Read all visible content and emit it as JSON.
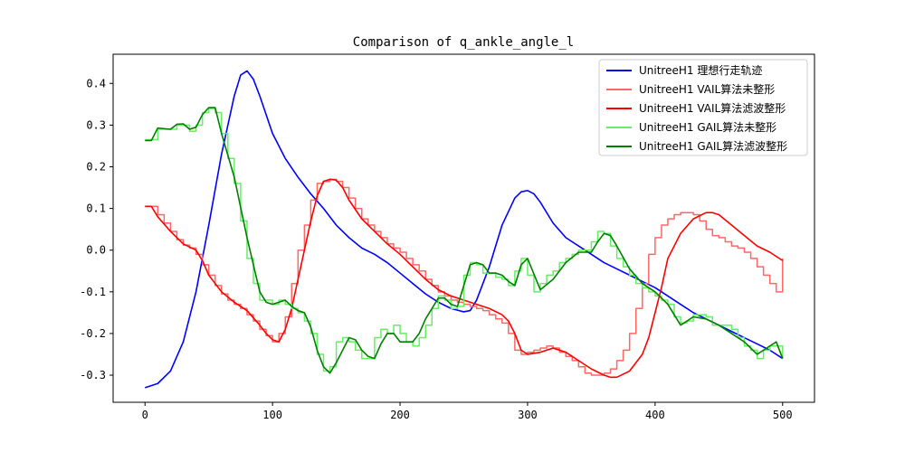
{
  "chart_data": {
    "type": "line",
    "title": "Comparison of q_ankle_angle_l",
    "xlabel": "",
    "ylabel": "",
    "xlim": [
      -25,
      525
    ],
    "ylim": [
      -0.365,
      0.47
    ],
    "xticks": [
      0,
      100,
      200,
      300,
      400,
      500
    ],
    "yticks": [
      -0.3,
      -0.2,
      -0.1,
      0.0,
      0.1,
      0.2,
      0.3,
      0.4
    ],
    "grid": false,
    "legend_position": "upper right",
    "series": [
      {
        "name": "UnitreeH1 理想行走轨迹",
        "color": "#0000ff",
        "style": "solid",
        "x": [
          0,
          10,
          20,
          30,
          40,
          50,
          60,
          70,
          75,
          80,
          85,
          90,
          100,
          110,
          120,
          130,
          140,
          150,
          160,
          170,
          180,
          190,
          200,
          210,
          220,
          230,
          240,
          250,
          255,
          260,
          270,
          280,
          290,
          295,
          300,
          305,
          310,
          320,
          330,
          340,
          350,
          360,
          370,
          380,
          390,
          400,
          410,
          420,
          430,
          440,
          450,
          460,
          470,
          480,
          490,
          500
        ],
        "y": [
          -0.33,
          -0.32,
          -0.29,
          -0.22,
          -0.1,
          0.06,
          0.23,
          0.37,
          0.42,
          0.43,
          0.41,
          0.37,
          0.28,
          0.22,
          0.175,
          0.135,
          0.1,
          0.06,
          0.03,
          0.005,
          -0.01,
          -0.03,
          -0.055,
          -0.08,
          -0.105,
          -0.125,
          -0.14,
          -0.148,
          -0.145,
          -0.12,
          -0.04,
          0.06,
          0.125,
          0.14,
          0.143,
          0.135,
          0.115,
          0.065,
          0.03,
          0.01,
          -0.01,
          -0.03,
          -0.045,
          -0.06,
          -0.075,
          -0.09,
          -0.11,
          -0.13,
          -0.15,
          -0.165,
          -0.18,
          -0.195,
          -0.21,
          -0.225,
          -0.24,
          -0.26
        ]
      },
      {
        "name": "UnitreeH1 VAIL算法未整形",
        "color": "#ff6666",
        "style": "step",
        "x": [
          0,
          5,
          10,
          15,
          20,
          25,
          30,
          35,
          40,
          45,
          50,
          55,
          60,
          65,
          70,
          75,
          80,
          85,
          90,
          95,
          100,
          105,
          110,
          115,
          120,
          125,
          130,
          135,
          140,
          145,
          150,
          155,
          160,
          165,
          170,
          175,
          180,
          185,
          190,
          195,
          200,
          205,
          210,
          215,
          220,
          225,
          230,
          235,
          240,
          245,
          250,
          255,
          260,
          265,
          270,
          275,
          280,
          285,
          290,
          295,
          300,
          305,
          310,
          315,
          320,
          325,
          330,
          335,
          340,
          345,
          350,
          355,
          360,
          365,
          370,
          375,
          380,
          385,
          390,
          395,
          400,
          405,
          410,
          415,
          420,
          425,
          430,
          435,
          440,
          445,
          450,
          455,
          460,
          465,
          470,
          475,
          480,
          485,
          490,
          495,
          500
        ],
        "y": [
          0.105,
          0.105,
          0.085,
          0.065,
          0.045,
          0.025,
          0.012,
          0.005,
          -0.01,
          -0.035,
          -0.06,
          -0.085,
          -0.105,
          -0.12,
          -0.13,
          -0.14,
          -0.155,
          -0.17,
          -0.19,
          -0.205,
          -0.22,
          -0.2,
          -0.16,
          -0.08,
          0.0,
          0.06,
          0.12,
          0.16,
          0.165,
          0.17,
          0.165,
          0.15,
          0.125,
          0.1,
          0.075,
          0.06,
          0.045,
          0.03,
          0.015,
          0.005,
          -0.005,
          -0.02,
          -0.035,
          -0.05,
          -0.07,
          -0.085,
          -0.1,
          -0.11,
          -0.12,
          -0.125,
          -0.13,
          -0.135,
          -0.14,
          -0.145,
          -0.155,
          -0.165,
          -0.175,
          -0.2,
          -0.24,
          -0.25,
          -0.245,
          -0.24,
          -0.235,
          -0.23,
          -0.235,
          -0.245,
          -0.255,
          -0.265,
          -0.28,
          -0.295,
          -0.3,
          -0.3,
          -0.295,
          -0.285,
          -0.265,
          -0.24,
          -0.2,
          -0.14,
          -0.08,
          -0.01,
          0.03,
          0.06,
          0.075,
          0.085,
          0.09,
          0.09,
          0.085,
          0.07,
          0.05,
          0.035,
          0.03,
          0.02,
          0.01,
          0.005,
          -0.005,
          -0.02,
          -0.04,
          -0.06,
          -0.08,
          -0.1,
          -0.02
        ]
      },
      {
        "name": "UnitreeH1 VAIL算法滤波整形",
        "color": "#ff0000",
        "style": "solid",
        "x": [
          0,
          5,
          10,
          20,
          30,
          40,
          45,
          50,
          60,
          70,
          80,
          90,
          95,
          100,
          105,
          110,
          115,
          120,
          125,
          130,
          135,
          140,
          145,
          150,
          155,
          160,
          170,
          180,
          190,
          200,
          210,
          220,
          230,
          240,
          250,
          260,
          270,
          280,
          285,
          290,
          295,
          300,
          310,
          320,
          330,
          340,
          350,
          360,
          365,
          370,
          380,
          390,
          395,
          400,
          405,
          410,
          420,
          430,
          440,
          445,
          450,
          460,
          470,
          480,
          490,
          500
        ],
        "y": [
          0.105,
          0.105,
          0.08,
          0.045,
          0.015,
          0.0,
          -0.025,
          -0.06,
          -0.1,
          -0.125,
          -0.145,
          -0.18,
          -0.2,
          -0.215,
          -0.22,
          -0.19,
          -0.14,
          -0.07,
          0.0,
          0.07,
          0.13,
          0.165,
          0.17,
          0.168,
          0.15,
          0.12,
          0.075,
          0.045,
          0.015,
          -0.01,
          -0.04,
          -0.07,
          -0.095,
          -0.11,
          -0.12,
          -0.13,
          -0.14,
          -0.155,
          -0.17,
          -0.2,
          -0.24,
          -0.25,
          -0.245,
          -0.235,
          -0.245,
          -0.265,
          -0.285,
          -0.3,
          -0.305,
          -0.305,
          -0.29,
          -0.25,
          -0.21,
          -0.15,
          -0.09,
          -0.02,
          0.04,
          0.075,
          0.09,
          0.09,
          0.085,
          0.06,
          0.035,
          0.01,
          -0.005,
          -0.025
        ]
      },
      {
        "name": "UnitreeH1 GAIL算法未整形",
        "color": "#66ee66",
        "style": "step",
        "x": [
          0,
          5,
          10,
          15,
          20,
          25,
          30,
          35,
          40,
          45,
          50,
          55,
          60,
          65,
          70,
          75,
          80,
          85,
          90,
          95,
          100,
          105,
          110,
          115,
          120,
          125,
          130,
          135,
          140,
          145,
          150,
          155,
          160,
          165,
          170,
          175,
          180,
          185,
          190,
          195,
          200,
          205,
          210,
          215,
          220,
          225,
          230,
          235,
          240,
          245,
          250,
          255,
          260,
          265,
          270,
          275,
          280,
          285,
          290,
          295,
          300,
          305,
          310,
          315,
          320,
          325,
          330,
          335,
          340,
          345,
          350,
          355,
          360,
          365,
          370,
          375,
          380,
          385,
          390,
          395,
          400,
          405,
          410,
          415,
          420,
          425,
          430,
          435,
          440,
          445,
          450,
          455,
          460,
          465,
          470,
          475,
          480,
          485,
          490,
          495,
          500
        ],
        "y": [
          0.265,
          0.265,
          0.29,
          0.29,
          0.29,
          0.3,
          0.3,
          0.285,
          0.3,
          0.33,
          0.34,
          0.33,
          0.28,
          0.22,
          0.16,
          0.07,
          -0.02,
          -0.08,
          -0.12,
          -0.12,
          -0.13,
          -0.12,
          -0.13,
          -0.14,
          -0.15,
          -0.17,
          -0.2,
          -0.25,
          -0.29,
          -0.28,
          -0.22,
          -0.21,
          -0.22,
          -0.24,
          -0.26,
          -0.26,
          -0.21,
          -0.19,
          -0.2,
          -0.18,
          -0.2,
          -0.22,
          -0.23,
          -0.21,
          -0.18,
          -0.14,
          -0.11,
          -0.12,
          -0.14,
          -0.135,
          -0.06,
          -0.03,
          -0.035,
          -0.055,
          -0.055,
          -0.065,
          -0.07,
          -0.085,
          -0.05,
          -0.02,
          -0.06,
          -0.1,
          -0.08,
          -0.06,
          -0.05,
          -0.03,
          -0.02,
          -0.01,
          0.0,
          0.0,
          0.02,
          0.045,
          0.04,
          0.01,
          -0.02,
          -0.04,
          -0.06,
          -0.08,
          -0.09,
          -0.1,
          -0.11,
          -0.12,
          -0.13,
          -0.16,
          -0.175,
          -0.17,
          -0.155,
          -0.155,
          -0.16,
          -0.18,
          -0.18,
          -0.18,
          -0.19,
          -0.21,
          -0.23,
          -0.24,
          -0.26,
          -0.24,
          -0.23,
          -0.23,
          -0.26
        ]
      },
      {
        "name": "UnitreeH1 GAIL算法滤波整形",
        "color": "#008000",
        "style": "solid",
        "x": [
          0,
          5,
          10,
          20,
          25,
          30,
          35,
          40,
          45,
          50,
          55,
          60,
          70,
          80,
          90,
          95,
          100,
          110,
          115,
          120,
          125,
          130,
          135,
          140,
          145,
          150,
          160,
          165,
          170,
          175,
          180,
          185,
          190,
          195,
          200,
          210,
          215,
          220,
          230,
          235,
          240,
          245,
          250,
          255,
          260,
          265,
          270,
          275,
          280,
          285,
          290,
          295,
          300,
          310,
          320,
          330,
          340,
          350,
          355,
          360,
          365,
          370,
          380,
          390,
          400,
          405,
          410,
          415,
          420,
          430,
          440,
          450,
          460,
          470,
          480,
          485,
          490,
          495,
          500
        ],
        "y": [
          0.263,
          0.263,
          0.293,
          0.29,
          0.302,
          0.303,
          0.29,
          0.295,
          0.325,
          0.342,
          0.342,
          0.28,
          0.175,
          0.03,
          -0.1,
          -0.125,
          -0.13,
          -0.12,
          -0.135,
          -0.145,
          -0.15,
          -0.185,
          -0.24,
          -0.28,
          -0.295,
          -0.27,
          -0.21,
          -0.215,
          -0.24,
          -0.255,
          -0.26,
          -0.225,
          -0.2,
          -0.2,
          -0.22,
          -0.22,
          -0.2,
          -0.165,
          -0.115,
          -0.115,
          -0.13,
          -0.135,
          -0.085,
          -0.035,
          -0.03,
          -0.035,
          -0.055,
          -0.055,
          -0.06,
          -0.075,
          -0.085,
          -0.035,
          -0.02,
          -0.095,
          -0.07,
          -0.03,
          -0.005,
          -0.005,
          0.02,
          0.04,
          0.035,
          0.01,
          -0.045,
          -0.08,
          -0.1,
          -0.115,
          -0.13,
          -0.155,
          -0.18,
          -0.16,
          -0.165,
          -0.18,
          -0.2,
          -0.22,
          -0.25,
          -0.24,
          -0.23,
          -0.22,
          -0.26
        ]
      }
    ]
  }
}
